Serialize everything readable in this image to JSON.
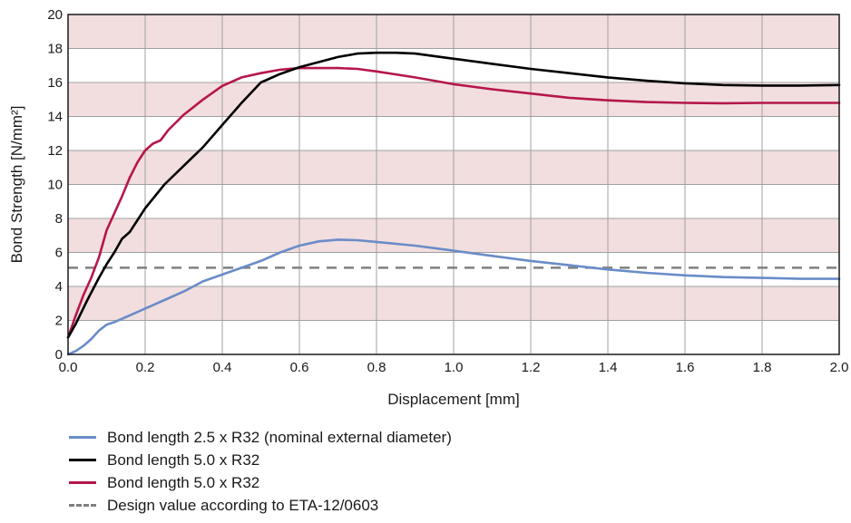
{
  "chart_data": {
    "type": "line",
    "xlabel": "Displacement [mm]",
    "ylabel": "Bond Strength [N/mm²]",
    "xlim": [
      0,
      2.0
    ],
    "ylim": [
      0,
      20
    ],
    "x_ticks": [
      "0.0",
      "0.2",
      "0.4",
      "0.6",
      "0.8",
      "1.0",
      "1.2",
      "1.4",
      "1.6",
      "1.8",
      "2.0"
    ],
    "y_ticks": [
      "0",
      "2",
      "4",
      "6",
      "8",
      "10",
      "12",
      "14",
      "16",
      "18",
      "20"
    ],
    "grid": true,
    "band_color": "#f2dede",
    "grid_color": "#a0a0a0",
    "legend_position": "bottom-left",
    "series": [
      {
        "name": "Bond length 2.5 x R32 (nominal external diameter)",
        "color": "#6a8cc8",
        "style": "solid",
        "x": [
          0,
          0.02,
          0.04,
          0.06,
          0.08,
          0.1,
          0.12,
          0.15,
          0.2,
          0.25,
          0.3,
          0.35,
          0.4,
          0.45,
          0.5,
          0.55,
          0.6,
          0.65,
          0.7,
          0.75,
          0.8,
          0.9,
          1.0,
          1.1,
          1.2,
          1.3,
          1.4,
          1.5,
          1.6,
          1.7,
          1.8,
          1.9,
          2.0
        ],
        "y": [
          0,
          0.2,
          0.5,
          0.9,
          1.4,
          1.75,
          1.9,
          2.2,
          2.7,
          3.2,
          3.7,
          4.3,
          4.7,
          5.1,
          5.5,
          6.0,
          6.4,
          6.65,
          6.75,
          6.72,
          6.62,
          6.4,
          6.1,
          5.8,
          5.5,
          5.25,
          5.0,
          4.8,
          4.65,
          4.55,
          4.5,
          4.45,
          4.45
        ]
      },
      {
        "name": "Bond length 5.0 x R32",
        "color": "#000000",
        "style": "solid",
        "x": [
          0,
          0.02,
          0.05,
          0.08,
          0.1,
          0.12,
          0.14,
          0.16,
          0.2,
          0.25,
          0.3,
          0.35,
          0.4,
          0.45,
          0.5,
          0.55,
          0.6,
          0.65,
          0.7,
          0.75,
          0.8,
          0.85,
          0.9,
          1.0,
          1.1,
          1.2,
          1.3,
          1.4,
          1.5,
          1.6,
          1.7,
          1.8,
          1.9,
          2.0
        ],
        "y": [
          1.0,
          1.8,
          3.2,
          4.5,
          5.3,
          6.0,
          6.8,
          7.2,
          8.6,
          10.0,
          11.1,
          12.2,
          13.5,
          14.8,
          16.0,
          16.5,
          16.9,
          17.2,
          17.5,
          17.7,
          17.75,
          17.75,
          17.7,
          17.4,
          17.1,
          16.8,
          16.55,
          16.3,
          16.1,
          15.95,
          15.85,
          15.82,
          15.82,
          15.85
        ]
      },
      {
        "name": "Bond length 5.0 x R32",
        "color": "#b5174b",
        "style": "solid",
        "x": [
          0,
          0.02,
          0.04,
          0.06,
          0.08,
          0.1,
          0.12,
          0.14,
          0.16,
          0.18,
          0.2,
          0.22,
          0.24,
          0.26,
          0.3,
          0.35,
          0.4,
          0.45,
          0.5,
          0.55,
          0.6,
          0.65,
          0.7,
          0.75,
          0.8,
          0.9,
          1.0,
          1.1,
          1.2,
          1.3,
          1.4,
          1.5,
          1.6,
          1.7,
          1.8,
          1.9,
          2.0
        ],
        "y": [
          1.0,
          2.3,
          3.5,
          4.5,
          5.7,
          7.3,
          8.3,
          9.3,
          10.4,
          11.3,
          12.0,
          12.4,
          12.6,
          13.2,
          14.1,
          15.0,
          15.8,
          16.3,
          16.55,
          16.75,
          16.85,
          16.85,
          16.85,
          16.8,
          16.65,
          16.3,
          15.9,
          15.6,
          15.35,
          15.1,
          14.95,
          14.85,
          14.8,
          14.78,
          14.8,
          14.8,
          14.8
        ]
      },
      {
        "name": "Design value according to ETA-12/0603",
        "color": "#808080",
        "style": "dashed",
        "x": [
          0,
          2.0
        ],
        "y": [
          5.1,
          5.1
        ]
      }
    ]
  }
}
